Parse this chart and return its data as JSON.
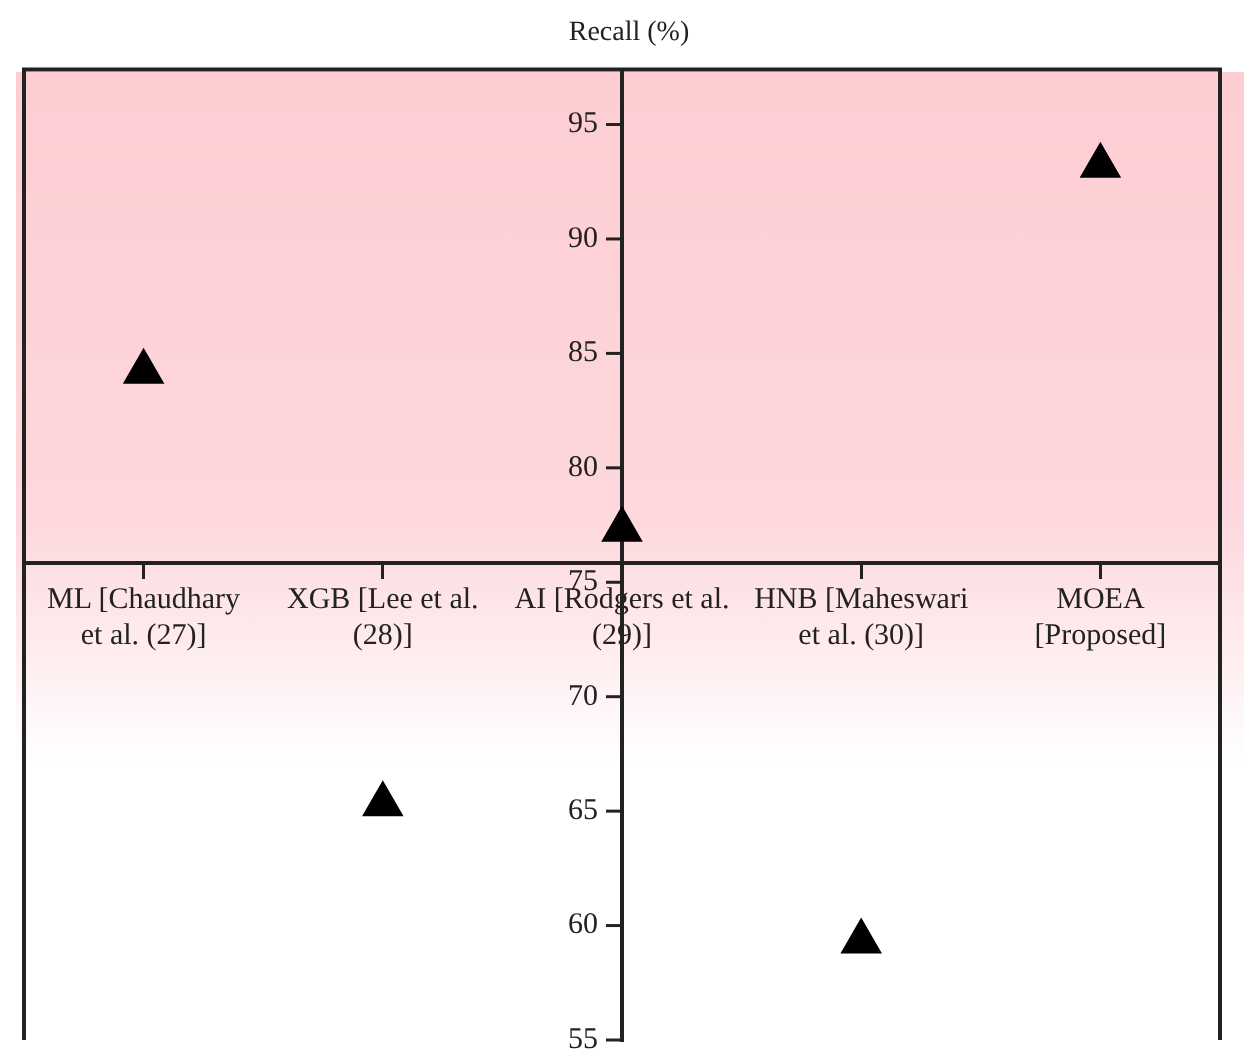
{
  "chart_data": {
    "type": "scatter",
    "ylabel": "Recall (%)",
    "categories": [
      "ML [Chaudhary et al. (27)]",
      "XGB [Lee et al. (28)]",
      "AI [Rodgers et al. (29)]",
      "HNB [Maheswari et al. (30)]",
      "MOEA [Proposed]"
    ],
    "series": [
      {
        "color": "#000000",
        "values": [
          84.2,
          65.3,
          77.3,
          59.3,
          93.2
        ]
      }
    ],
    "ylim": [
      55,
      97.4
    ],
    "yticks": [
      55,
      60,
      65,
      70,
      75,
      80,
      85,
      90,
      95
    ],
    "marker": "triangle",
    "grid": false,
    "legend": false
  }
}
